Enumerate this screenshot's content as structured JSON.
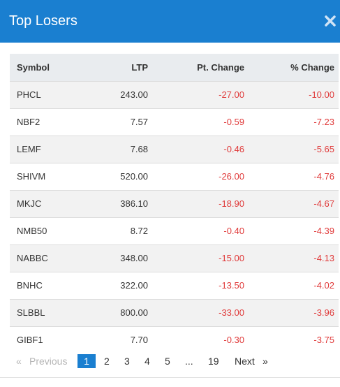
{
  "modal": {
    "title": "Top Losers",
    "close_icon": "close-icon",
    "accent_color": "#1a7fd0",
    "negative_color": "#e03b3b"
  },
  "table": {
    "headers": {
      "symbol": "Symbol",
      "ltp": "LTP",
      "pt_change": "Pt. Change",
      "pct_change": "% Change"
    },
    "rows": [
      {
        "symbol": "PHCL",
        "ltp": "243.00",
        "pt_change": "-27.00",
        "pct_change": "-10.00"
      },
      {
        "symbol": "NBF2",
        "ltp": "7.57",
        "pt_change": "-0.59",
        "pct_change": "-7.23"
      },
      {
        "symbol": "LEMF",
        "ltp": "7.68",
        "pt_change": "-0.46",
        "pct_change": "-5.65"
      },
      {
        "symbol": "SHIVM",
        "ltp": "520.00",
        "pt_change": "-26.00",
        "pct_change": "-4.76"
      },
      {
        "symbol": "MKJC",
        "ltp": "386.10",
        "pt_change": "-18.90",
        "pct_change": "-4.67"
      },
      {
        "symbol": "NMB50",
        "ltp": "8.72",
        "pt_change": "-0.40",
        "pct_change": "-4.39"
      },
      {
        "symbol": "NABBC",
        "ltp": "348.00",
        "pt_change": "-15.00",
        "pct_change": "-4.13"
      },
      {
        "symbol": "BNHC",
        "ltp": "322.00",
        "pt_change": "-13.50",
        "pct_change": "-4.02"
      },
      {
        "symbol": "SLBBL",
        "ltp": "800.00",
        "pt_change": "-33.00",
        "pct_change": "-3.96"
      },
      {
        "symbol": "GIBF1",
        "ltp": "7.70",
        "pt_change": "-0.30",
        "pct_change": "-3.75"
      }
    ]
  },
  "pagination": {
    "prev_arrow": "«",
    "previous": "Previous",
    "pages": [
      "1",
      "2",
      "3",
      "4",
      "5"
    ],
    "ellipsis": "...",
    "last_page": "19",
    "next": "Next",
    "next_arrow": "»",
    "current_page": 1
  }
}
